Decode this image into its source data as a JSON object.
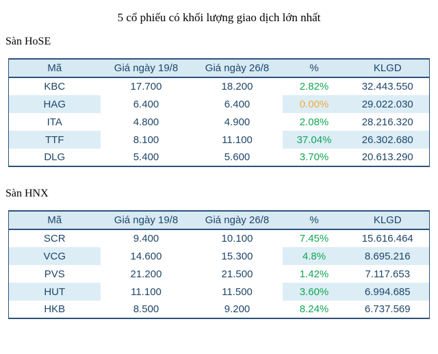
{
  "page": {
    "title": "5 cổ phiếu có khối lượng giao dịch lớn nhất"
  },
  "colors": {
    "header_bg": "#d7e9f3",
    "stripe_bg": "#dcedf6",
    "text_navy": "#1e4568",
    "border_navy": "#2b5179",
    "positive_green": "#12a552",
    "neutral_orange": "#f2a93b"
  },
  "columns": [
    "Mã",
    "Giá ngày 19/8",
    "Giá ngày 26/8",
    "%",
    "KLGD"
  ],
  "sections": [
    {
      "label": "Sàn HoSE",
      "rows": [
        {
          "ma": "KBC",
          "gia_19_8": "17.700",
          "gia_26_8": "18.200",
          "pct": "2.82%",
          "pct_color": "green",
          "klgd": "32.443.550"
        },
        {
          "ma": "HAG",
          "gia_19_8": "6.400",
          "gia_26_8": "6.400",
          "pct": "0.00%",
          "pct_color": "orange",
          "klgd": "29.022.030"
        },
        {
          "ma": "ITA",
          "gia_19_8": "4.800",
          "gia_26_8": "4.900",
          "pct": "2.08%",
          "pct_color": "green",
          "klgd": "28.216.320"
        },
        {
          "ma": "TTF",
          "gia_19_8": "8.100",
          "gia_26_8": "11.100",
          "pct": "37.04%",
          "pct_color": "green",
          "klgd": "26.302.680"
        },
        {
          "ma": "DLG",
          "gia_19_8": "5.400",
          "gia_26_8": "5.600",
          "pct": "3.70%",
          "pct_color": "green",
          "klgd": "20.613.290"
        }
      ]
    },
    {
      "label": "Sàn HNX",
      "rows": [
        {
          "ma": "SCR",
          "gia_19_8": "9.400",
          "gia_26_8": "10.100",
          "pct": "7.45%",
          "pct_color": "green",
          "klgd": "15.616.464"
        },
        {
          "ma": "VCG",
          "gia_19_8": "14.600",
          "gia_26_8": "15.300",
          "pct": "4.8%",
          "pct_color": "green",
          "klgd": "8.695.216"
        },
        {
          "ma": "PVS",
          "gia_19_8": "21.200",
          "gia_26_8": "21.500",
          "pct": "1.42%",
          "pct_color": "green",
          "klgd": "7.117.653"
        },
        {
          "ma": "HUT",
          "gia_19_8": "11.100",
          "gia_26_8": "11.500",
          "pct": "3.60%",
          "pct_color": "green",
          "klgd": "6.994.685"
        },
        {
          "ma": "HKB",
          "gia_19_8": "8.500",
          "gia_26_8": "9.200",
          "pct": "8.24%",
          "pct_color": "green",
          "klgd": "6.737.569"
        }
      ]
    }
  ]
}
